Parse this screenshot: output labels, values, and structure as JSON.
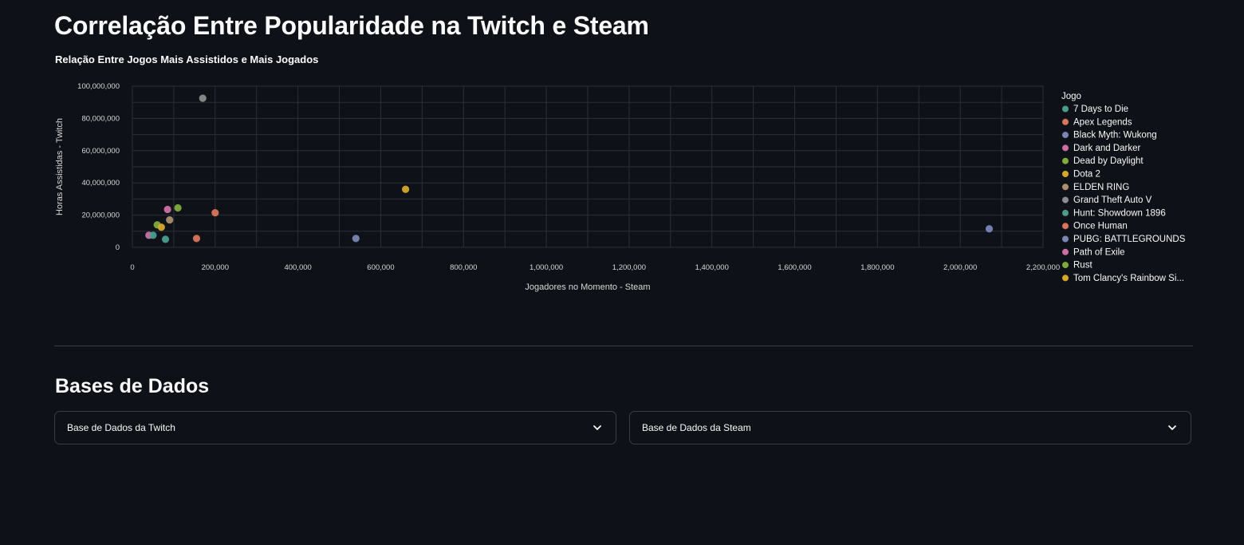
{
  "page": {
    "title": "Correlação Entre Popularidade na Twitch e Steam",
    "section_title": "Bases de Dados"
  },
  "expanders": [
    {
      "label": "Base de Dados da Twitch",
      "icon": "chevron-down-icon"
    },
    {
      "label": "Base de Dados da Steam",
      "icon": "chevron-down-icon"
    }
  ],
  "chart_data": {
    "type": "scatter",
    "title": "Relação Entre Jogos Mais Assistidos e Mais Jogados",
    "xlabel": "Jogadores no Momento - Steam",
    "ylabel": "Horas Assistidas - Twitch",
    "xlim": [
      0,
      2200000
    ],
    "ylim": [
      0,
      100000000
    ],
    "xticks": [
      0,
      200000,
      400000,
      600000,
      800000,
      1000000,
      1200000,
      1400000,
      1600000,
      1800000,
      2000000,
      2200000
    ],
    "xtick_labels": [
      "0",
      "200,000",
      "400,000",
      "600,000",
      "800,000",
      "1,000,000",
      "1,200,000",
      "1,400,000",
      "1,600,000",
      "1,800,000",
      "2,000,000",
      "2,200,000"
    ],
    "yticks": [
      0,
      20000000,
      40000000,
      60000000,
      80000000,
      100000000
    ],
    "ytick_labels": [
      "0",
      "20,000,000",
      "40,000,000",
      "60,000,000",
      "80,000,000",
      "100,000,000"
    ],
    "grid": true,
    "legend_title": "Jogo",
    "legend_position": "right",
    "series": [
      {
        "name": "7 Days to Die",
        "color": "#4c9c8c",
        "x": 80000,
        "y": 5000000
      },
      {
        "name": "Apex Legends",
        "color": "#d8755a",
        "x": 200000,
        "y": 21500000
      },
      {
        "name": "Black Myth: Wukong",
        "color": "#7b86b5",
        "x": 2070000,
        "y": 11500000
      },
      {
        "name": "Dark and Darker",
        "color": "#cc6fa6",
        "x": 40000,
        "y": 7500000
      },
      {
        "name": "Dead by Daylight",
        "color": "#7faa3e",
        "x": 110000,
        "y": 24500000
      },
      {
        "name": "Dota 2",
        "color": "#d4a92a",
        "x": 660000,
        "y": 36000000
      },
      {
        "name": "ELDEN RING",
        "color": "#a9906e",
        "x": 90000,
        "y": 17000000
      },
      {
        "name": "Grand Theft Auto V",
        "color": "#8c8c8c",
        "x": 170000,
        "y": 92500000
      },
      {
        "name": "Hunt: Showdown 1896",
        "color": "#4c9c8c",
        "x": 50000,
        "y": 7500000
      },
      {
        "name": "Once Human",
        "color": "#d8755a",
        "x": 155000,
        "y": 5500000
      },
      {
        "name": "PUBG: BATTLEGROUNDS",
        "color": "#7b86b5",
        "x": 540000,
        "y": 5500000
      },
      {
        "name": "Path of Exile",
        "color": "#cc6fa6",
        "x": 85000,
        "y": 23500000
      },
      {
        "name": "Rust",
        "color": "#7faa3e",
        "x": 60000,
        "y": 14000000
      },
      {
        "name": "Tom Clancy's Rainbow Si...",
        "color": "#d4a92a",
        "x": 70000,
        "y": 12500000
      }
    ]
  },
  "colors": {
    "background": "#0e1117",
    "grid": "#2a2f3a",
    "text": "#fafafa",
    "tick_text": "#d8d8d8",
    "border": "#3a3d45"
  }
}
